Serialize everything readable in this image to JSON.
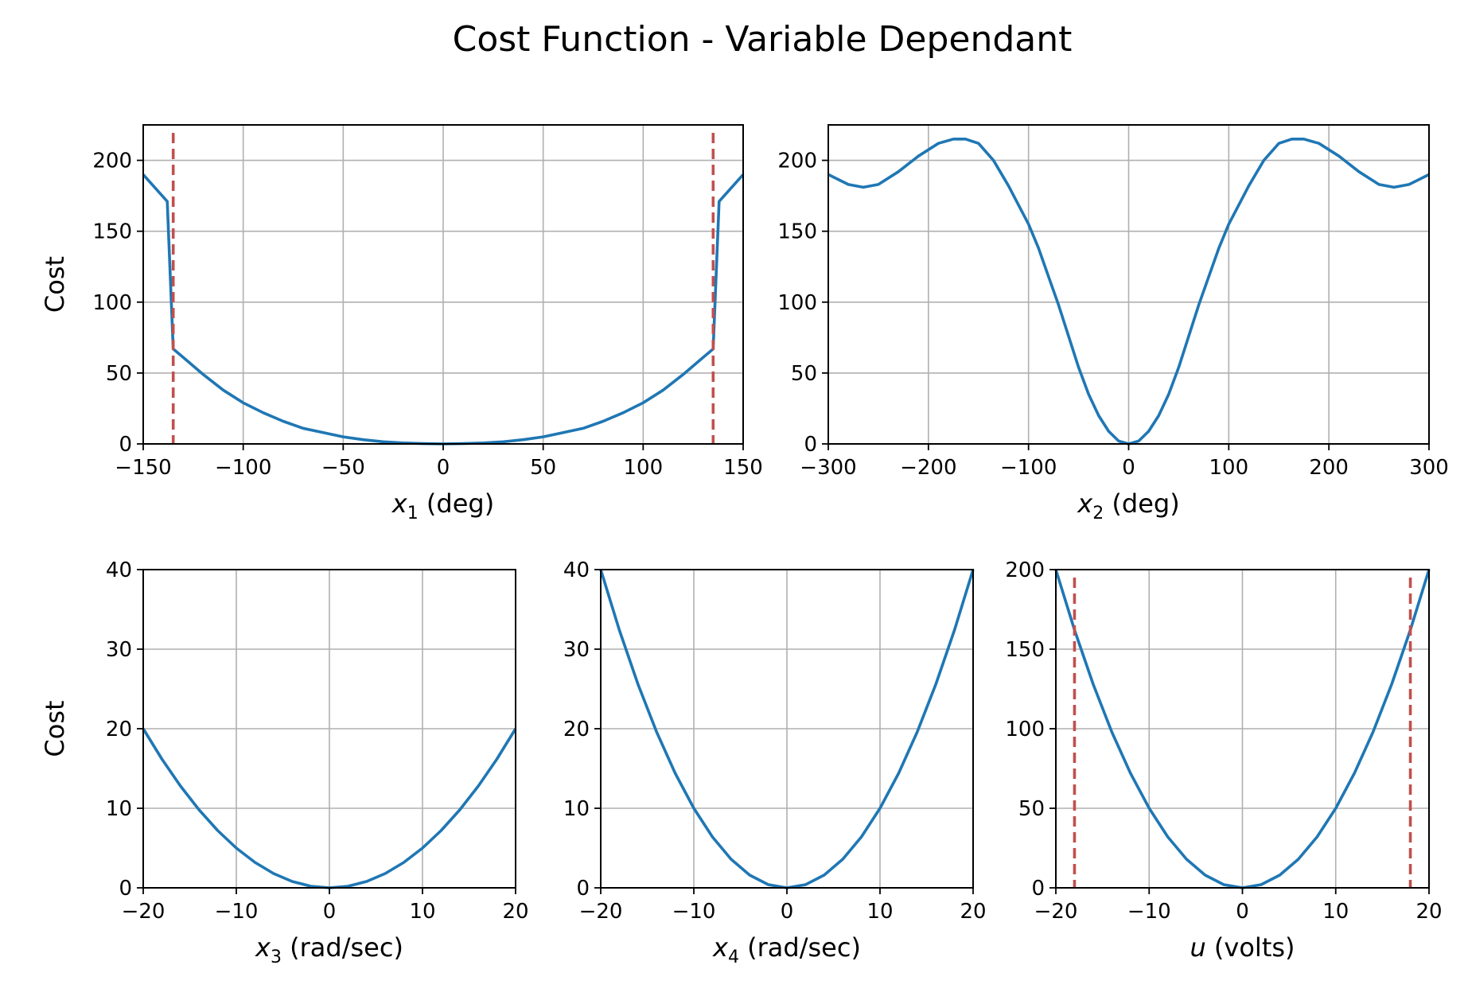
{
  "figure": {
    "title": "Cost Function - Variable Dependant"
  },
  "colors": {
    "series": "#1f77b4",
    "limit": "#c0504d",
    "grid": "#b0b0b0"
  },
  "chart_data": [
    {
      "id": "x1",
      "type": "line",
      "xlabel_var": "x",
      "xlabel_sub": "1",
      "xlabel_unit": " (deg)",
      "ylabel": "Cost",
      "xlim": [
        -150,
        150
      ],
      "ylim": [
        0,
        225
      ],
      "xticks": [
        -150,
        -100,
        -50,
        0,
        50,
        100,
        150
      ],
      "yticks": [
        0,
        50,
        100,
        150,
        200
      ],
      "grid": true,
      "vlines": [
        -135,
        135
      ],
      "x": [
        -150,
        -138,
        -135,
        -130,
        -120,
        -110,
        -100,
        -90,
        -80,
        -70,
        -60,
        -50,
        -40,
        -30,
        -20,
        -10,
        0,
        10,
        20,
        30,
        40,
        50,
        60,
        70,
        80,
        90,
        100,
        110,
        120,
        130,
        135,
        138,
        150
      ],
      "y": [
        190,
        171,
        67,
        61,
        49,
        38,
        29,
        22,
        16,
        11,
        8,
        5,
        3,
        1.5,
        0.7,
        0.2,
        0,
        0.2,
        0.7,
        1.5,
        3,
        5,
        8,
        11,
        16,
        22,
        29,
        38,
        49,
        61,
        67,
        171,
        190
      ]
    },
    {
      "id": "x2",
      "type": "line",
      "xlabel_var": "x",
      "xlabel_sub": "2",
      "xlabel_unit": " (deg)",
      "ylabel": "",
      "xlim": [
        -300,
        300
      ],
      "ylim": [
        0,
        225
      ],
      "xticks": [
        -300,
        -200,
        -100,
        0,
        100,
        200,
        300
      ],
      "yticks": [
        0,
        50,
        100,
        150,
        200
      ],
      "grid": true,
      "vlines": [],
      "x": [
        -300,
        -280,
        -265,
        -250,
        -230,
        -210,
        -190,
        -175,
        -163,
        -150,
        -135,
        -120,
        -100,
        -90,
        -80,
        -70,
        -60,
        -50,
        -40,
        -30,
        -20,
        -10,
        0,
        10,
        20,
        30,
        40,
        50,
        60,
        70,
        80,
        90,
        100,
        120,
        135,
        150,
        163,
        175,
        190,
        210,
        230,
        250,
        265,
        280,
        300
      ],
      "y": [
        190,
        183,
        181,
        183,
        192,
        203,
        212,
        215,
        215,
        212,
        200,
        182,
        155,
        138,
        118,
        98,
        76,
        54,
        35,
        20,
        9,
        2,
        0,
        2,
        9,
        20,
        35,
        54,
        76,
        98,
        118,
        138,
        155,
        182,
        200,
        212,
        215,
        215,
        212,
        203,
        192,
        183,
        181,
        183,
        190
      ]
    },
    {
      "id": "x3",
      "type": "line",
      "xlabel_var": "x",
      "xlabel_sub": "3",
      "xlabel_unit": " (rad/sec)",
      "ylabel": "Cost",
      "xlim": [
        -20,
        20
      ],
      "ylim": [
        0,
        40
      ],
      "xticks": [
        -20,
        -10,
        0,
        10,
        20
      ],
      "yticks": [
        0,
        10,
        20,
        30,
        40
      ],
      "grid": true,
      "vlines": [],
      "x": [
        -20,
        -18,
        -16,
        -14,
        -12,
        -10,
        -8,
        -6,
        -4,
        -2,
        0,
        2,
        4,
        6,
        8,
        10,
        12,
        14,
        16,
        18,
        20
      ],
      "y": [
        20,
        16.2,
        12.8,
        9.8,
        7.2,
        5,
        3.2,
        1.8,
        0.8,
        0.2,
        0,
        0.2,
        0.8,
        1.8,
        3.2,
        5,
        7.2,
        9.8,
        12.8,
        16.2,
        20
      ]
    },
    {
      "id": "x4",
      "type": "line",
      "xlabel_var": "x",
      "xlabel_sub": "4",
      "xlabel_unit": " (rad/sec)",
      "ylabel": "",
      "xlim": [
        -20,
        20
      ],
      "ylim": [
        0,
        40
      ],
      "xticks": [
        -20,
        -10,
        0,
        10,
        20
      ],
      "yticks": [
        0,
        10,
        20,
        30,
        40
      ],
      "grid": true,
      "vlines": [],
      "x": [
        -20,
        -18,
        -16,
        -14,
        -12,
        -10,
        -8,
        -6,
        -4,
        -2,
        0,
        2,
        4,
        6,
        8,
        10,
        12,
        14,
        16,
        18,
        20
      ],
      "y": [
        40,
        32.4,
        25.6,
        19.6,
        14.4,
        10,
        6.4,
        3.6,
        1.6,
        0.4,
        0,
        0.4,
        1.6,
        3.6,
        6.4,
        10,
        14.4,
        19.6,
        25.6,
        32.4,
        40
      ]
    },
    {
      "id": "u",
      "type": "line",
      "xlabel_var": "u",
      "xlabel_sub": "",
      "xlabel_unit": " (volts)",
      "ylabel": "",
      "xlim": [
        -20,
        20
      ],
      "ylim": [
        0,
        200
      ],
      "xticks": [
        -20,
        -10,
        0,
        10,
        20
      ],
      "yticks": [
        0,
        50,
        100,
        150,
        200
      ],
      "grid": true,
      "vlines": [
        -18,
        18
      ],
      "x": [
        -20,
        -18,
        -16,
        -14,
        -12,
        -10,
        -8,
        -6,
        -4,
        -2,
        0,
        2,
        4,
        6,
        8,
        10,
        12,
        14,
        16,
        18,
        20
      ],
      "y": [
        200,
        162,
        128,
        98,
        72,
        50,
        32,
        18,
        8,
        2,
        0,
        2,
        8,
        18,
        32,
        50,
        72,
        98,
        128,
        162,
        200
      ]
    }
  ]
}
